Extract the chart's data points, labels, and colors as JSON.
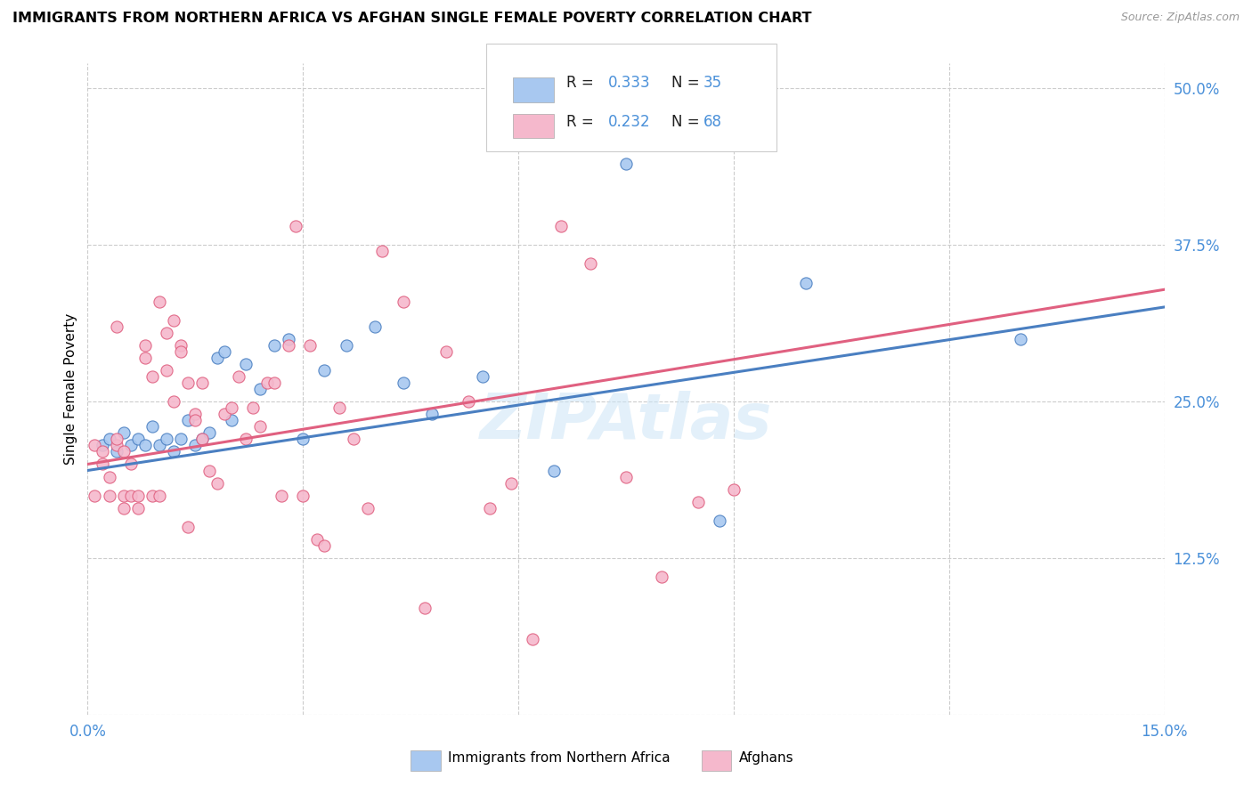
{
  "title": "IMMIGRANTS FROM NORTHERN AFRICA VS AFGHAN SINGLE FEMALE POVERTY CORRELATION CHART",
  "source": "Source: ZipAtlas.com",
  "ylabel": "Single Female Poverty",
  "xlim": [
    0.0,
    0.15
  ],
  "ylim": [
    0.0,
    0.52
  ],
  "xticks": [
    0.0,
    0.03,
    0.06,
    0.09,
    0.12,
    0.15
  ],
  "yticks_right": [
    0.0,
    0.125,
    0.25,
    0.375,
    0.5
  ],
  "yticklabels_right": [
    "",
    "12.5%",
    "25.0%",
    "37.5%",
    "50.0%"
  ],
  "blue_color": "#a8c8f0",
  "pink_color": "#f5b8cc",
  "blue_line_color": "#4a7fc1",
  "pink_line_color": "#e06080",
  "text_blue_color": "#4a90d9",
  "R_blue": 0.333,
  "N_blue": 35,
  "R_pink": 0.232,
  "N_pink": 68,
  "legend_label_blue": "Immigrants from Northern Africa",
  "legend_label_pink": "Afghans",
  "watermark": "ZIPAtlas",
  "blue_scatter_x": [
    0.002,
    0.003,
    0.004,
    0.005,
    0.006,
    0.007,
    0.008,
    0.009,
    0.01,
    0.011,
    0.012,
    0.013,
    0.014,
    0.015,
    0.016,
    0.017,
    0.018,
    0.019,
    0.02,
    0.022,
    0.024,
    0.026,
    0.028,
    0.03,
    0.033,
    0.036,
    0.04,
    0.044,
    0.048,
    0.055,
    0.065,
    0.075,
    0.088,
    0.1,
    0.13
  ],
  "blue_scatter_y": [
    0.215,
    0.22,
    0.21,
    0.225,
    0.215,
    0.22,
    0.215,
    0.23,
    0.215,
    0.22,
    0.21,
    0.22,
    0.235,
    0.215,
    0.22,
    0.225,
    0.285,
    0.29,
    0.235,
    0.28,
    0.26,
    0.295,
    0.3,
    0.22,
    0.275,
    0.295,
    0.31,
    0.265,
    0.24,
    0.27,
    0.195,
    0.44,
    0.155,
    0.345,
    0.3
  ],
  "pink_scatter_x": [
    0.001,
    0.001,
    0.002,
    0.002,
    0.003,
    0.003,
    0.004,
    0.004,
    0.004,
    0.005,
    0.005,
    0.005,
    0.006,
    0.006,
    0.007,
    0.007,
    0.008,
    0.008,
    0.009,
    0.009,
    0.01,
    0.01,
    0.011,
    0.011,
    0.012,
    0.012,
    0.013,
    0.013,
    0.014,
    0.014,
    0.015,
    0.015,
    0.016,
    0.016,
    0.017,
    0.018,
    0.019,
    0.02,
    0.021,
    0.022,
    0.023,
    0.024,
    0.025,
    0.026,
    0.027,
    0.028,
    0.029,
    0.03,
    0.031,
    0.032,
    0.033,
    0.035,
    0.037,
    0.039,
    0.041,
    0.044,
    0.047,
    0.05,
    0.053,
    0.056,
    0.059,
    0.062,
    0.066,
    0.07,
    0.075,
    0.08,
    0.085,
    0.09
  ],
  "pink_scatter_y": [
    0.215,
    0.175,
    0.21,
    0.2,
    0.19,
    0.175,
    0.215,
    0.31,
    0.22,
    0.21,
    0.175,
    0.165,
    0.2,
    0.175,
    0.175,
    0.165,
    0.295,
    0.285,
    0.27,
    0.175,
    0.175,
    0.33,
    0.275,
    0.305,
    0.315,
    0.25,
    0.295,
    0.29,
    0.15,
    0.265,
    0.24,
    0.235,
    0.265,
    0.22,
    0.195,
    0.185,
    0.24,
    0.245,
    0.27,
    0.22,
    0.245,
    0.23,
    0.265,
    0.265,
    0.175,
    0.295,
    0.39,
    0.175,
    0.295,
    0.14,
    0.135,
    0.245,
    0.22,
    0.165,
    0.37,
    0.33,
    0.085,
    0.29,
    0.25,
    0.165,
    0.185,
    0.06,
    0.39,
    0.36,
    0.19,
    0.11,
    0.17,
    0.18
  ]
}
